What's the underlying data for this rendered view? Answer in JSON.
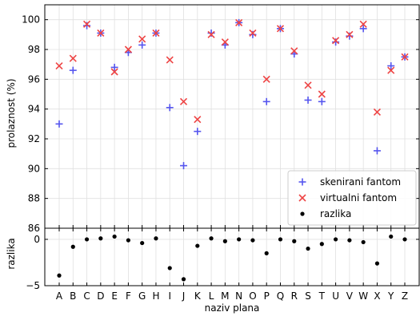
{
  "chart_data": {
    "type": "scatter",
    "categories": [
      "A",
      "B",
      "C",
      "D",
      "E",
      "F",
      "G",
      "H",
      "I",
      "J",
      "K",
      "L",
      "M",
      "N",
      "O",
      "P",
      "Q",
      "R",
      "S",
      "T",
      "U",
      "V",
      "W",
      "X",
      "Y",
      "Z"
    ],
    "xlabel": "naziv plana",
    "grid": true,
    "legend_position": "bottom-right",
    "top_panel": {
      "ylabel": "prolaznost (%)",
      "ylim": [
        86,
        101
      ],
      "yticks": [
        86,
        88,
        90,
        92,
        94,
        96,
        98,
        100
      ],
      "series": [
        {
          "name": "skenirani fantom",
          "marker": "plus",
          "color": "#5555ee",
          "values": [
            93.0,
            96.6,
            99.6,
            99.1,
            96.8,
            97.8,
            98.3,
            99.1,
            94.1,
            90.2,
            92.5,
            99.1,
            98.3,
            99.8,
            99.0,
            94.5,
            99.4,
            97.7,
            94.6,
            94.5,
            98.5,
            98.9,
            99.4,
            91.2,
            96.9,
            97.5
          ]
        },
        {
          "name": "virtualni fantom",
          "marker": "x",
          "color": "#ee4444",
          "values": [
            96.9,
            97.4,
            99.7,
            99.1,
            96.5,
            98.0,
            98.7,
            99.1,
            97.3,
            94.5,
            93.3,
            99.0,
            98.5,
            99.8,
            99.1,
            96.0,
            99.4,
            97.9,
            95.6,
            95.0,
            98.6,
            99.0,
            99.7,
            93.8,
            96.6,
            97.5
          ]
        }
      ]
    },
    "bottom_panel": {
      "ylabel": "razlika",
      "ylim": [
        -5,
        1.2
      ],
      "yticks": [
        -5,
        0
      ],
      "series": [
        {
          "name": "razlika",
          "marker": "dot",
          "color": "#000000",
          "values": [
            -3.9,
            -0.8,
            0.0,
            0.1,
            0.3,
            -0.1,
            -0.4,
            0.1,
            -3.1,
            -4.3,
            -0.7,
            0.1,
            -0.2,
            0.0,
            -0.1,
            -1.5,
            0.0,
            -0.2,
            -1.0,
            -0.5,
            0.0,
            -0.1,
            -0.3,
            -2.6,
            0.3,
            0.0
          ]
        }
      ]
    }
  }
}
